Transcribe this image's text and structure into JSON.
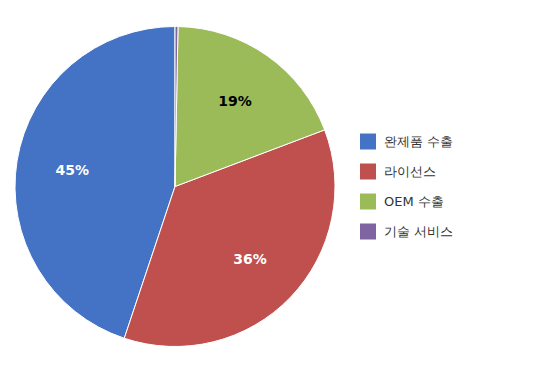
{
  "chart_data": {
    "type": "pie",
    "categories": [
      "완제품 수출",
      "라이선스",
      "OEM 수출",
      "기술 서비스"
    ],
    "values": [
      45,
      36,
      19,
      0.3
    ],
    "value_labels": [
      "45%",
      "36%",
      "19%",
      null
    ],
    "colors": [
      "#4472C4",
      "#C0504D",
      "#9BBB59",
      "#8064A2"
    ],
    "data_labels": true,
    "legend": "right"
  }
}
